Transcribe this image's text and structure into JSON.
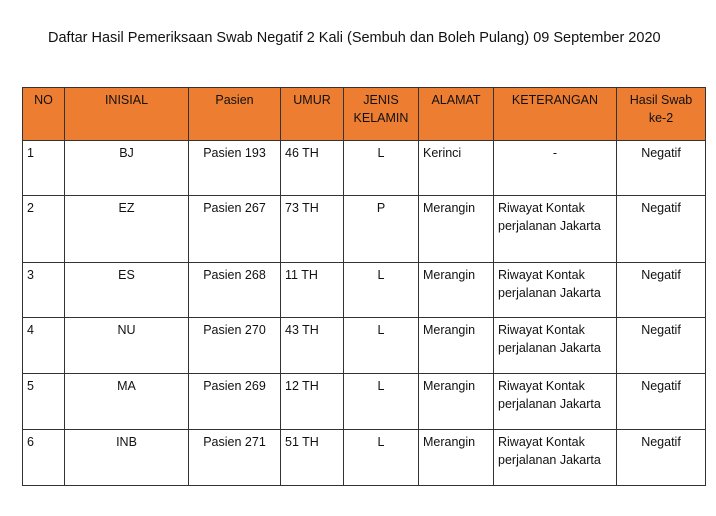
{
  "title": "Daftar Hasil Pemeriksaan Swab Negatif 2 Kali (Sembuh dan Boleh Pulang) 09 September 2020",
  "header_color": "#ED7D31",
  "columns": [
    "NO",
    "INISIAL",
    "Pasien",
    "UMUR",
    "JENIS KELAMIN",
    "ALAMAT",
    "KETERANGAN",
    "Hasil Swab ke-2"
  ],
  "rows": [
    [
      "1",
      "BJ",
      "Pasien 193",
      "46 TH",
      "L",
      "Kerinci",
      "-",
      "Negatif"
    ],
    [
      "2",
      "EZ",
      "Pasien 267",
      "73 TH",
      "P",
      "Merangin",
      "Riwayat Kontak perjalanan Jakarta",
      "Negatif"
    ],
    [
      "3",
      "ES",
      "Pasien 268",
      "11 TH",
      "L",
      "Merangin",
      "Riwayat Kontak perjalanan Jakarta",
      "Negatif"
    ],
    [
      "4",
      "NU",
      "Pasien 270",
      "43 TH",
      "L",
      "Merangin",
      "Riwayat Kontak perjalanan Jakarta",
      "Negatif"
    ],
    [
      "5",
      "MA",
      "Pasien 269",
      "12 TH",
      "L",
      "Merangin",
      "Riwayat Kontak perjalanan Jakarta",
      "Negatif"
    ],
    [
      "6",
      "INB",
      "Pasien 271",
      "51 TH",
      "L",
      "Merangin",
      "Riwayat Kontak perjalanan Jakarta",
      "Negatif"
    ]
  ]
}
